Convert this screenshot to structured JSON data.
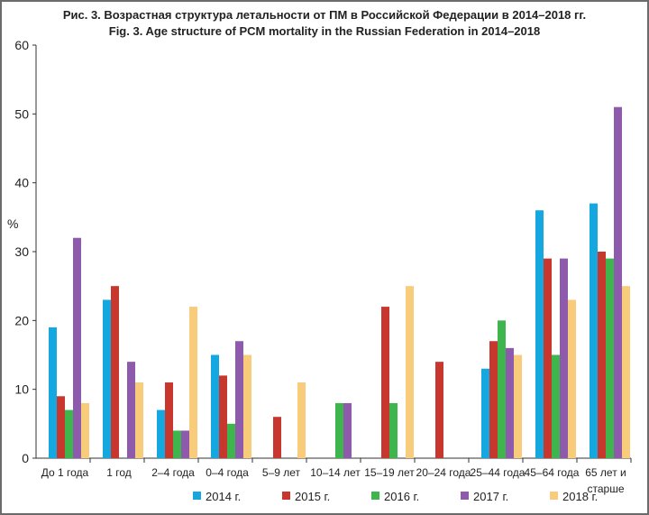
{
  "chart_data": {
    "type": "bar",
    "title": "Рис. 3. Возрастная структура летальности от ПМ  в Российской Федерации в 2014–2018 гг.",
    "subtitle": "Fig. 3. Age structure of PCM mortality in the Russian Federation in 2014–2018",
    "xlabel": "",
    "ylabel": "%",
    "ylim": [
      0,
      60
    ],
    "yticks": [
      0,
      10,
      20,
      30,
      40,
      50,
      60
    ],
    "grid": false,
    "legend_position": "bottom",
    "categories": [
      "До 1 года",
      "1 год",
      "2–4 года",
      "0–4 года",
      "5–9 лет",
      "10–14 лет",
      "15–19 лет",
      "20–24 года",
      "25–44 года",
      "45–64 года",
      "65 лет и старше"
    ],
    "series": [
      {
        "name": "2014 г.",
        "color": "#14a7e0",
        "values": [
          19,
          23,
          7,
          15,
          0,
          0,
          0,
          0,
          13,
          36,
          37
        ]
      },
      {
        "name": "2015 г.",
        "color": "#c8372d",
        "values": [
          9,
          25,
          11,
          12,
          6,
          0,
          22,
          14,
          17,
          29,
          30
        ]
      },
      {
        "name": "2016 г.",
        "color": "#3fb54d",
        "values": [
          7,
          0,
          4,
          5,
          0,
          8,
          8,
          0,
          20,
          15,
          29
        ]
      },
      {
        "name": "2017 г.",
        "color": "#8e5aab",
        "values": [
          32,
          14,
          4,
          17,
          0,
          8,
          0,
          0,
          16,
          29,
          51
        ]
      },
      {
        "name": "2018 г.",
        "color": "#f8cc7a",
        "values": [
          8,
          11,
          22,
          15,
          11,
          0,
          25,
          0,
          15,
          23,
          25
        ]
      }
    ]
  }
}
